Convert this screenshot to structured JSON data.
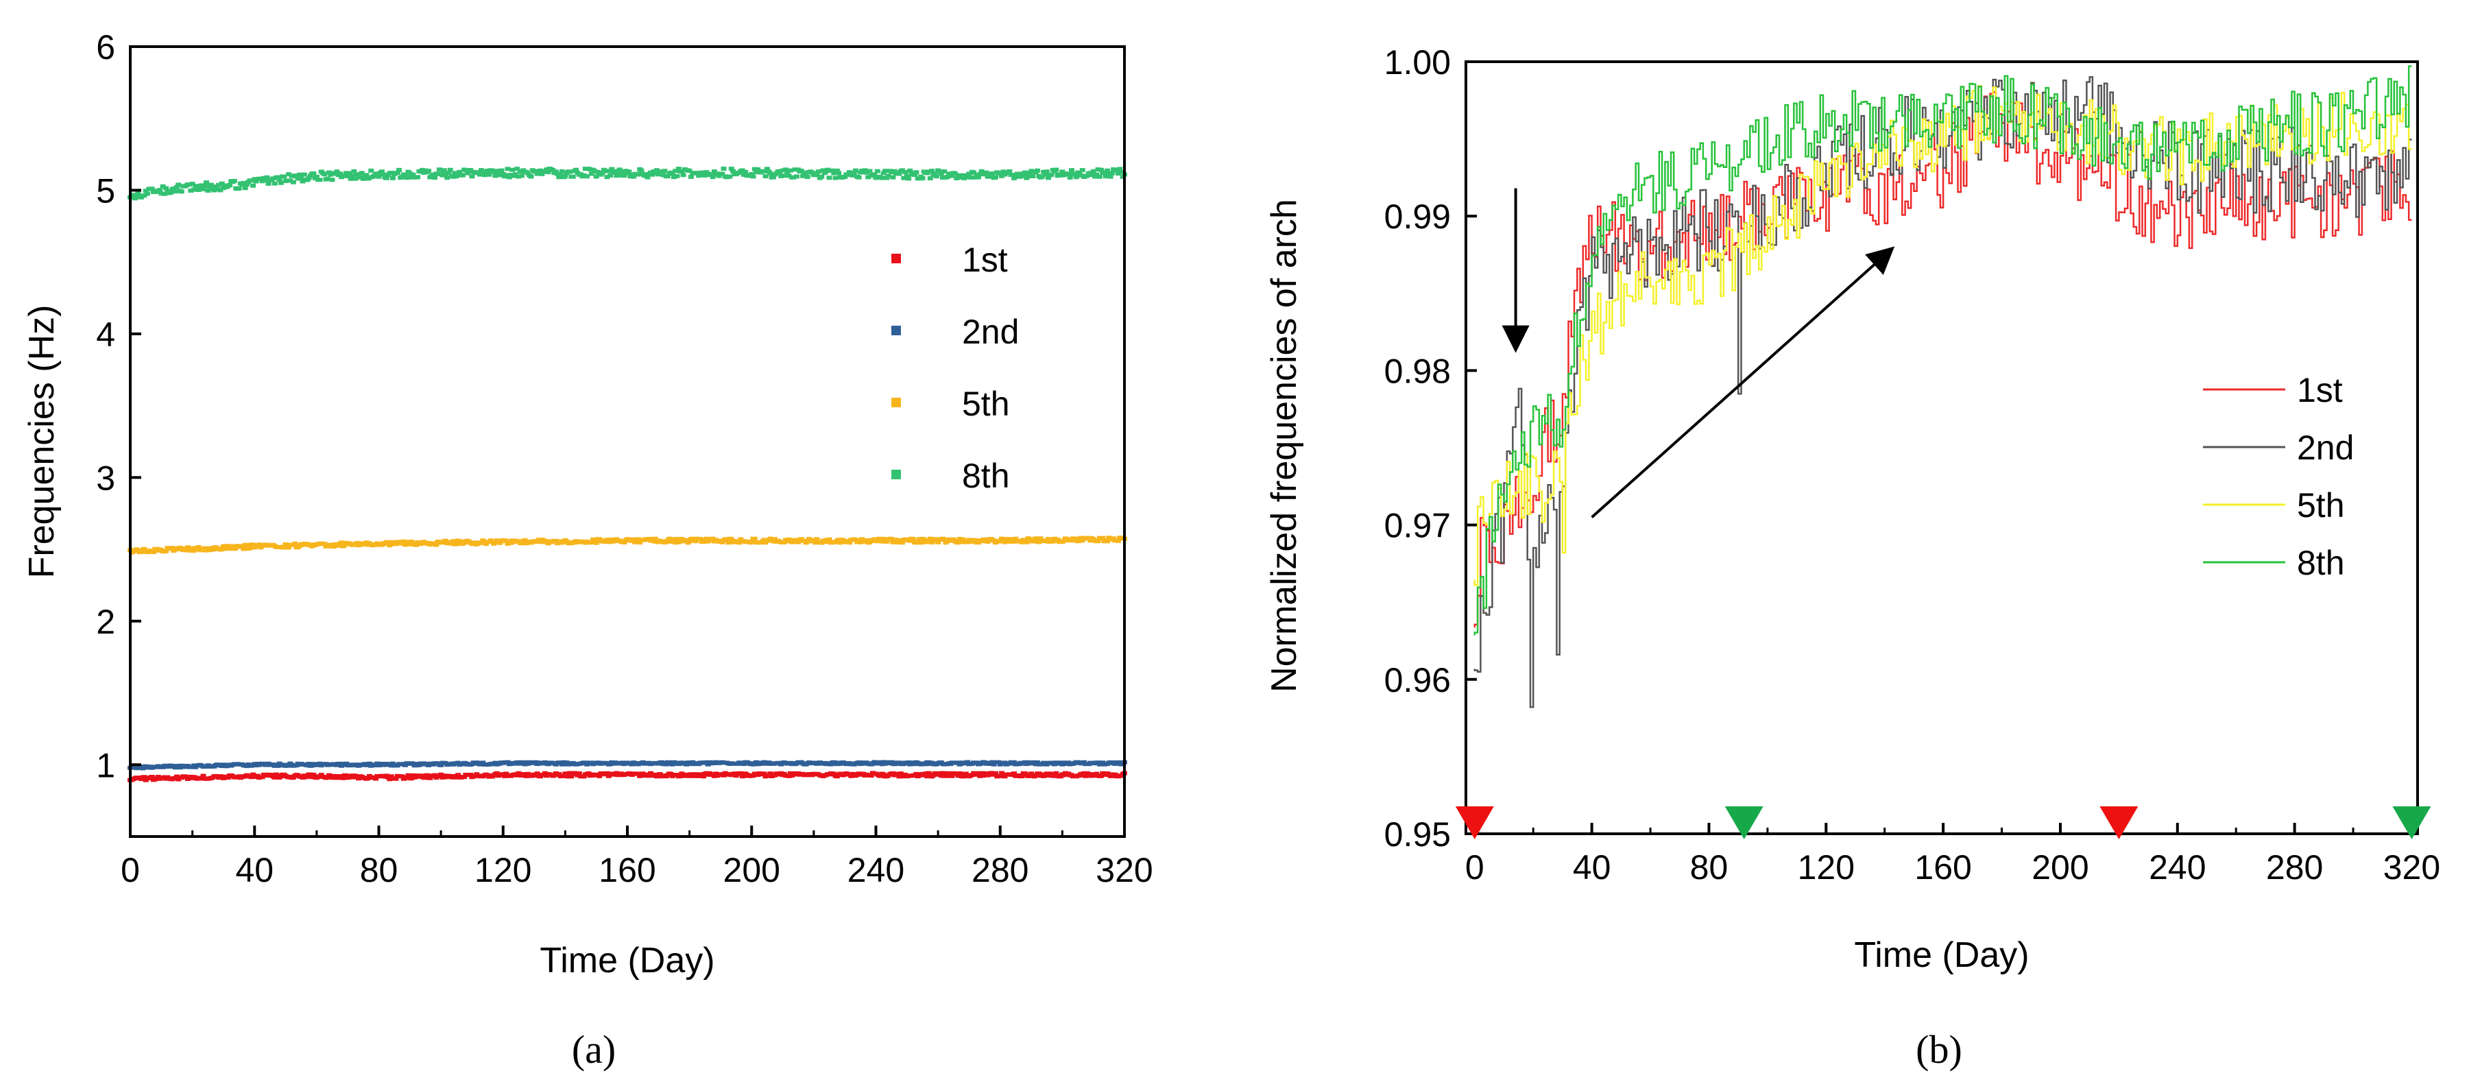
{
  "chart_data": [
    {
      "type": "scatter",
      "panel_label": "a",
      "xlabel": "Time (Day)",
      "ylabel": "Frequencies (Hz)",
      "xlim": [
        0,
        320
      ],
      "ylim": [
        0.5,
        6
      ],
      "xticks": [
        0,
        40,
        80,
        120,
        160,
        200,
        240,
        280,
        320
      ],
      "yticks": [
        1,
        2,
        3,
        4,
        5,
        6
      ],
      "legend_position": "right-middle",
      "series": [
        {
          "name": "1st",
          "color": "#e8101a",
          "day": [
            0,
            20,
            40,
            60,
            80,
            120,
            160,
            200,
            240,
            280,
            320
          ],
          "value": [
            0.9,
            0.91,
            0.92,
            0.92,
            0.91,
            0.93,
            0.93,
            0.93,
            0.93,
            0.93,
            0.93
          ]
        },
        {
          "name": "2nd",
          "color": "#2f5f97",
          "day": [
            0,
            20,
            40,
            60,
            80,
            120,
            160,
            200,
            240,
            280,
            320
          ],
          "value": [
            0.98,
            0.99,
            1.0,
            1.0,
            1.0,
            1.01,
            1.01,
            1.01,
            1.01,
            1.01,
            1.01
          ]
        },
        {
          "name": "5th",
          "color": "#f7b51d",
          "day": [
            0,
            20,
            40,
            60,
            80,
            120,
            160,
            200,
            240,
            280,
            320
          ],
          "value": [
            2.49,
            2.5,
            2.52,
            2.53,
            2.54,
            2.55,
            2.56,
            2.56,
            2.56,
            2.56,
            2.57
          ]
        },
        {
          "name": "8th",
          "color": "#33c172",
          "day": [
            0,
            10,
            20,
            30,
            40,
            50,
            60,
            80,
            120,
            160,
            200,
            240,
            280,
            320
          ],
          "value": [
            4.95,
            5.0,
            5.02,
            5.03,
            5.05,
            5.08,
            5.1,
            5.11,
            5.12,
            5.12,
            5.12,
            5.11,
            5.11,
            5.12
          ]
        }
      ]
    },
    {
      "type": "line",
      "panel_label": "b",
      "xlabel": "Time (Day)",
      "ylabel": "Normalized frequencies of arch",
      "xlim": [
        -3,
        322
      ],
      "ylim": [
        0.95,
        1.0
      ],
      "xticks": [
        0,
        40,
        80,
        120,
        160,
        200,
        240,
        280,
        320
      ],
      "yticks": [
        0.95,
        0.96,
        0.97,
        0.98,
        0.99,
        1.0
      ],
      "ytick_labels": [
        "0.95",
        "0.96",
        "0.97",
        "0.98",
        "0.99",
        "1.00"
      ],
      "legend_position": "right-middle",
      "series": [
        {
          "name": "1st",
          "color": "#ee2a2a",
          "day": [
            0,
            5,
            10,
            15,
            20,
            25,
            30,
            35,
            40,
            50,
            60,
            80,
            100,
            120,
            140,
            160,
            180,
            200,
            220,
            240,
            260,
            280,
            300,
            320
          ],
          "value": [
            0.965,
            0.97,
            0.968,
            0.972,
            0.973,
            0.975,
            0.977,
            0.985,
            0.988,
            0.989,
            0.988,
            0.989,
            0.99,
            0.991,
            0.992,
            0.993,
            0.996,
            0.994,
            0.992,
            0.99,
            0.991,
            0.991,
            0.991,
            0.992
          ]
        },
        {
          "name": "2nd",
          "color": "#555555",
          "day": [
            0,
            5,
            10,
            15,
            20,
            25,
            30,
            35,
            40,
            50,
            60,
            80,
            100,
            120,
            140,
            160,
            180,
            200,
            220,
            240,
            260,
            280,
            300,
            320
          ],
          "value": [
            0.961,
            0.965,
            0.97,
            0.979,
            0.967,
            0.972,
            0.97,
            0.982,
            0.986,
            0.988,
            0.988,
            0.989,
            0.99,
            0.993,
            0.995,
            0.995,
            0.997,
            0.997,
            0.996,
            0.993,
            0.993,
            0.993,
            0.992,
            0.993
          ]
        },
        {
          "name": "5th",
          "color": "#f5f02a",
          "day": [
            0,
            5,
            10,
            15,
            20,
            25,
            30,
            35,
            40,
            50,
            60,
            80,
            100,
            120,
            140,
            160,
            180,
            200,
            220,
            240,
            260,
            280,
            300,
            320
          ],
          "value": [
            0.967,
            0.972,
            0.972,
            0.972,
            0.973,
            0.972,
            0.973,
            0.979,
            0.982,
            0.985,
            0.986,
            0.986,
            0.989,
            0.992,
            0.994,
            0.995,
            0.997,
            0.996,
            0.995,
            0.994,
            0.995,
            0.995,
            0.996,
            0.996
          ]
        },
        {
          "name": "8th",
          "color": "#27c23a",
          "day": [
            0,
            5,
            10,
            15,
            20,
            25,
            30,
            35,
            40,
            50,
            60,
            80,
            100,
            120,
            140,
            160,
            180,
            200,
            220,
            240,
            260,
            280,
            300,
            320
          ],
          "value": [
            0.962,
            0.968,
            0.972,
            0.975,
            0.976,
            0.977,
            0.977,
            0.982,
            0.986,
            0.991,
            0.992,
            0.993,
            0.995,
            0.996,
            0.996,
            0.996,
            0.997,
            0.996,
            0.995,
            0.994,
            0.995,
            0.996,
            0.996,
            0.998
          ]
        }
      ],
      "annotations": {
        "arrow_color": "#000000",
        "down_arrow": {
          "day": 14,
          "from": 0.9918,
          "to": 0.9815
        },
        "trend_arrow": {
          "from_day": 40,
          "from_value": 0.9705,
          "to_day": 142,
          "to_value": 0.9878
        },
        "markers": [
          {
            "day": 0,
            "color": "#ee1111"
          },
          {
            "day": 92,
            "color": "#17a84a"
          },
          {
            "day": 220,
            "color": "#ee1111"
          },
          {
            "day": 320,
            "color": "#17a84a"
          }
        ]
      }
    }
  ],
  "captions": {
    "a": "(a)",
    "b": "(b)"
  }
}
